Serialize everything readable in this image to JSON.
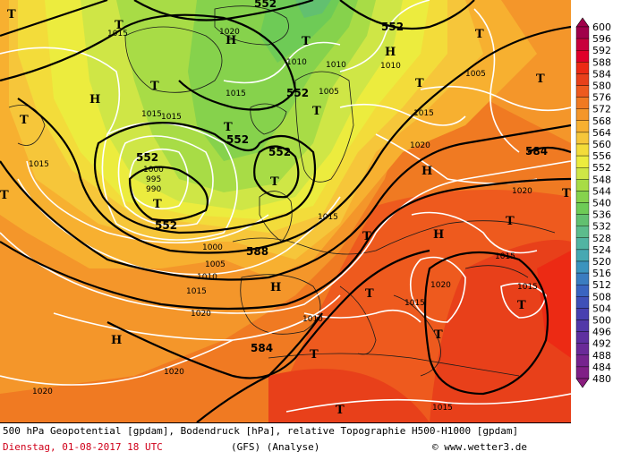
{
  "footer": {
    "line1": "500 hPa Geopotential [gpdam], Bodendruck [hPa], relative Topographie H500-H1000 [gpdam]",
    "date": "Dienstag, 01-08-2017  18 UTC",
    "model": "(GFS)  (Analyse)",
    "copyright": "© www.wetter3.de"
  },
  "legend": {
    "levels": [
      "600",
      "596",
      "592",
      "588",
      "584",
      "580",
      "576",
      "572",
      "568",
      "564",
      "560",
      "556",
      "552",
      "548",
      "544",
      "540",
      "536",
      "532",
      "528",
      "524",
      "520",
      "516",
      "512",
      "508",
      "504",
      "500",
      "496",
      "492",
      "488",
      "484",
      "480"
    ],
    "colors": [
      "#a0004a",
      "#c8003c",
      "#e0002a",
      "#ec2a14",
      "#e8401a",
      "#ee5a1e",
      "#f07a22",
      "#f4962a",
      "#f7b030",
      "#f6c63a",
      "#f3dc3a",
      "#ecec3e",
      "#cfe646",
      "#a8dc46",
      "#86d24c",
      "#6ecb56",
      "#62c070",
      "#5cbc8c",
      "#52b4a2",
      "#46a8b2",
      "#3c94be",
      "#3a7cc0",
      "#3a64c0",
      "#4050b8",
      "#4840b0",
      "#5238a8",
      "#5e30a0",
      "#6a2a98",
      "#76248e",
      "#802086",
      "#8a1c7e"
    ]
  },
  "map": {
    "geopotential_labels": [
      {
        "text": "552"
      },
      {
        "text": "552"
      },
      {
        "text": "552"
      },
      {
        "text": "552"
      },
      {
        "text": "552"
      },
      {
        "text": "552"
      },
      {
        "text": "588"
      },
      {
        "text": "584"
      },
      {
        "text": "584"
      },
      {
        "text": "552"
      }
    ],
    "pressure_labels": [
      {
        "text": "1015"
      },
      {
        "text": "1020"
      },
      {
        "text": "1010"
      },
      {
        "text": "1010"
      },
      {
        "text": "1015"
      },
      {
        "text": "1005"
      },
      {
        "text": "1015"
      },
      {
        "text": "1015"
      },
      {
        "text": "1015"
      },
      {
        "text": "1005"
      },
      {
        "text": "1010"
      },
      {
        "text": "1015"
      },
      {
        "text": "1020"
      },
      {
        "text": "1015"
      },
      {
        "text": "1000"
      },
      {
        "text": "995"
      },
      {
        "text": "990"
      },
      {
        "text": "1020"
      },
      {
        "text": "1000"
      },
      {
        "text": "1005"
      },
      {
        "text": "1010"
      },
      {
        "text": "1015"
      },
      {
        "text": "1020"
      },
      {
        "text": "1015"
      },
      {
        "text": "1015"
      },
      {
        "text": "1020"
      },
      {
        "text": "1015"
      },
      {
        "text": "1015"
      },
      {
        "text": "1010"
      },
      {
        "text": "1015"
      },
      {
        "text": "1020"
      },
      {
        "text": "1020"
      },
      {
        "text": "1015"
      },
      {
        "text": "1015"
      }
    ],
    "markers": [
      {
        "text": "T"
      },
      {
        "text": "T"
      },
      {
        "text": "T"
      },
      {
        "text": "T"
      },
      {
        "text": "T"
      },
      {
        "text": "H"
      },
      {
        "text": "T"
      },
      {
        "text": "T"
      },
      {
        "text": "H"
      },
      {
        "text": "H"
      },
      {
        "text": "T"
      },
      {
        "text": "H"
      },
      {
        "text": "T"
      },
      {
        "text": "T"
      },
      {
        "text": "T"
      },
      {
        "text": "T"
      },
      {
        "text": "T"
      },
      {
        "text": "T"
      },
      {
        "text": "T"
      },
      {
        "text": "T"
      },
      {
        "text": "H"
      },
      {
        "text": "T"
      },
      {
        "text": "H"
      },
      {
        "text": "T"
      },
      {
        "text": "H"
      },
      {
        "text": "T"
      },
      {
        "text": "T"
      },
      {
        "text": "T"
      },
      {
        "text": "H"
      },
      {
        "text": "T"
      },
      {
        "text": "T"
      },
      {
        "text": "T"
      },
      {
        "text": "T"
      }
    ]
  }
}
